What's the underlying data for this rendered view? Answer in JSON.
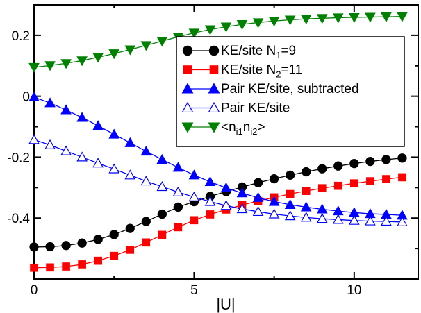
{
  "chart_data": {
    "type": "line",
    "title": "",
    "xlabel": "|U|",
    "ylabel": "",
    "xlim": [
      0,
      12
    ],
    "ylim": [
      -0.6,
      0.3
    ],
    "xticks": [
      0,
      5,
      10
    ],
    "yticks": [
      -0.4,
      -0.2,
      0,
      0.2
    ],
    "xtick_labels": [
      "0",
      "5",
      "10"
    ],
    "ytick_labels": [
      "-0.4",
      "-0.2",
      "0",
      "0.2"
    ],
    "grid": false,
    "legend_position": "top-right",
    "x": [
      0,
      0.5,
      1,
      1.5,
      2,
      2.5,
      3,
      3.5,
      4,
      4.5,
      5,
      5.5,
      6,
      6.5,
      7,
      7.5,
      8,
      8.5,
      9,
      9.5,
      10,
      10.5,
      11,
      11.5
    ],
    "series": [
      {
        "name": "KE/site N1=9",
        "legend": {
          "prefix": "KE/site N",
          "sub": "1",
          "suffix": "=9"
        },
        "color": "#000000",
        "marker": "circle",
        "filled": true,
        "values": [
          -0.495,
          -0.494,
          -0.49,
          -0.482,
          -0.47,
          -0.454,
          -0.434,
          -0.411,
          -0.387,
          -0.364,
          -0.346,
          -0.329,
          -0.313,
          -0.298,
          -0.284,
          -0.271,
          -0.259,
          -0.248,
          -0.238,
          -0.229,
          -0.221,
          -0.214,
          -0.208,
          -0.203
        ]
      },
      {
        "name": "KE/site N2=11",
        "legend": {
          "prefix": "KE/site N",
          "sub": "2",
          "suffix": "=11"
        },
        "color": "#ff0000",
        "marker": "square",
        "filled": true,
        "values": [
          -0.563,
          -0.562,
          -0.559,
          -0.552,
          -0.54,
          -0.524,
          -0.504,
          -0.48,
          -0.455,
          -0.43,
          -0.407,
          -0.388,
          -0.372,
          -0.357,
          -0.344,
          -0.332,
          -0.321,
          -0.311,
          -0.302,
          -0.294,
          -0.286,
          -0.279,
          -0.272,
          -0.266
        ]
      },
      {
        "name": "Pair KE/site, subtracted",
        "legend": {
          "prefix": "Pair KE/site, subtracted",
          "sub": "",
          "suffix": ""
        },
        "color": "#0000ff",
        "marker": "triangle-up",
        "filled": true,
        "values": [
          -0.003,
          -0.022,
          -0.045,
          -0.07,
          -0.097,
          -0.125,
          -0.153,
          -0.181,
          -0.208,
          -0.234,
          -0.259,
          -0.281,
          -0.301,
          -0.318,
          -0.333,
          -0.346,
          -0.356,
          -0.364,
          -0.371,
          -0.377,
          -0.382,
          -0.386,
          -0.388,
          -0.391
        ]
      },
      {
        "name": "Pair KE/site",
        "legend": {
          "prefix": "Pair KE/site",
          "sub": "",
          "suffix": ""
        },
        "color": "#0000ff",
        "marker": "triangle-up",
        "filled": false,
        "values": [
          -0.143,
          -0.16,
          -0.18,
          -0.2,
          -0.22,
          -0.239,
          -0.259,
          -0.279,
          -0.297,
          -0.315,
          -0.331,
          -0.346,
          -0.359,
          -0.37,
          -0.379,
          -0.387,
          -0.393,
          -0.398,
          -0.402,
          -0.405,
          -0.408,
          -0.41,
          -0.411,
          -0.413
        ]
      },
      {
        "name": "<ni1ni2>",
        "legend": {
          "prefix": "<n",
          "sub": "i1",
          "mid": "n",
          "sub2": "i2",
          "suffix": ">"
        },
        "color": "#008000",
        "marker": "triangle-down",
        "filled": true,
        "values": [
          0.095,
          0.101,
          0.108,
          0.117,
          0.128,
          0.14,
          0.153,
          0.167,
          0.181,
          0.195,
          0.208,
          0.219,
          0.228,
          0.236,
          0.242,
          0.247,
          0.251,
          0.254,
          0.256,
          0.258,
          0.259,
          0.26,
          0.261,
          0.262
        ]
      }
    ]
  }
}
